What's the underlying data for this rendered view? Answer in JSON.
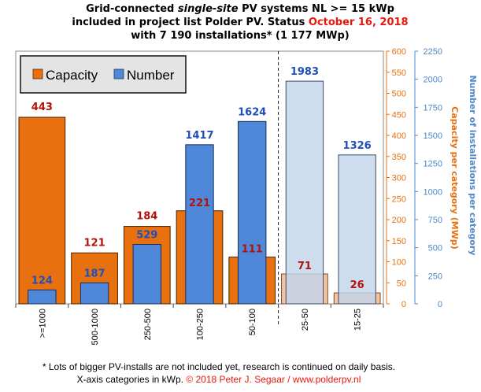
{
  "chart_data": {
    "type": "bar",
    "title_lines": [
      "Grid-connected single-site PV systems NL >= 15 kWp",
      "included in project list Polder PV. Status October 16, 2018",
      "with 7 190 installations* (1 177 MWp)"
    ],
    "title_parts": {
      "l1_a": "Grid-connected ",
      "l1_b": "single-site",
      "l1_c": " PV systems NL >= 15 kWp",
      "l2_a": "included in project list Polder PV. Status ",
      "l2_b": "October 16, 2018",
      "l3": "with 7 190 installations* (1 177 MWp)"
    },
    "categories": [
      ">=1000",
      "500-1000",
      "250-500",
      "100-250",
      "50-100",
      "25-50",
      "15-25"
    ],
    "series": [
      {
        "name": "Capacity",
        "axis": "left",
        "values": [
          443,
          121,
          184,
          221,
          111,
          71,
          26
        ],
        "labels": [
          "443",
          "121",
          "184",
          "221",
          "111",
          "71",
          "26"
        ],
        "color": "#e8700e",
        "light_color": "#f2c4a0"
      },
      {
        "name": "Number",
        "axis": "right",
        "values": [
          124,
          187,
          529,
          1417,
          1624,
          1983,
          1326
        ],
        "labels": [
          "124",
          "187",
          "529",
          "1417",
          "1624",
          "1983",
          "1326"
        ],
        "color": "#4f88d8",
        "light_color": "#c3d5ea"
      }
    ],
    "ylabel_left": "Capacity per category (MWp)",
    "ylabel_right": "Number of installations per category",
    "ylim_left": [
      0,
      600
    ],
    "ylim_right": [
      0,
      2250
    ],
    "yticks_left": [
      0,
      50,
      100,
      150,
      200,
      250,
      300,
      350,
      400,
      450,
      500,
      550,
      600
    ],
    "yticks_right": [
      0,
      250,
      500,
      750,
      1000,
      1250,
      1500,
      1750,
      2000,
      2250
    ],
    "light_from_category": 5,
    "divider_after_category": 4,
    "legend_position": "top-left",
    "label_colors": {
      "capacity": "#b3120c",
      "number": "#1f4fb8"
    },
    "footnote_line1": "* Lots of bigger PV-installs are not included yet, research is continued on daily basis.",
    "footnote_line2a": "X-axis categories in kWp. ",
    "footnote_line2b": "© 2018 Peter J. Segaar / www.polderpv.nl"
  }
}
